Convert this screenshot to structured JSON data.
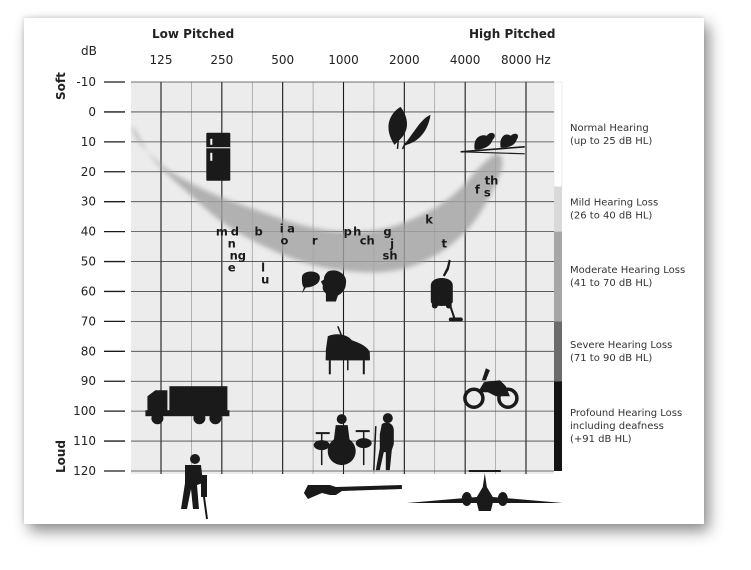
{
  "chart_data": {
    "type": "scatter",
    "title": "",
    "header_left": "Low Pitched",
    "header_right": "High Pitched",
    "y_unit": "dB",
    "y_axis_soft": "Soft",
    "y_axis_loud": "Loud",
    "y_ticks": [
      -10,
      0,
      10,
      20,
      30,
      40,
      50,
      60,
      70,
      80,
      90,
      100,
      110,
      120
    ],
    "ylim": [
      -10,
      120
    ],
    "y_reversed": true,
    "x_scale": "log",
    "x_ticks": [
      125,
      250,
      500,
      1000,
      2000,
      4000,
      8000
    ],
    "x_tick_labels": [
      "125",
      "250",
      "500",
      "1000",
      "2000",
      "4000",
      "8000 Hz"
    ],
    "grid": true,
    "speech_banana_outline": [
      [
        91,
        5
      ],
      [
        115,
        16
      ],
      [
        170,
        27
      ],
      [
        280,
        39
      ],
      [
        560,
        49
      ],
      [
        1000,
        53
      ],
      [
        1800,
        53
      ],
      [
        3000,
        47
      ],
      [
        4500,
        36
      ],
      [
        6000,
        20
      ],
      [
        5800,
        14
      ],
      [
        4800,
        18
      ],
      [
        3600,
        27
      ],
      [
        2500,
        34
      ],
      [
        1600,
        39
      ],
      [
        1000,
        40
      ],
      [
        640,
        38
      ],
      [
        380,
        33
      ],
      [
        220,
        27
      ],
      [
        140,
        20
      ],
      [
        110,
        14
      ],
      [
        95,
        9
      ]
    ],
    "speech_sounds": [
      {
        "label": "m",
        "x": 250,
        "y": 40
      },
      {
        "label": "d",
        "x": 290,
        "y": 40
      },
      {
        "label": "b",
        "x": 380,
        "y": 40
      },
      {
        "label": "i",
        "x": 495,
        "y": 39
      },
      {
        "label": "a",
        "x": 550,
        "y": 39
      },
      {
        "label": "n",
        "x": 280,
        "y": 44
      },
      {
        "label": "ng",
        "x": 300,
        "y": 48
      },
      {
        "label": "e",
        "x": 280,
        "y": 52
      },
      {
        "label": "l",
        "x": 400,
        "y": 52
      },
      {
        "label": "u",
        "x": 410,
        "y": 56
      },
      {
        "label": "o",
        "x": 510,
        "y": 43
      },
      {
        "label": "r",
        "x": 720,
        "y": 43
      },
      {
        "label": "p",
        "x": 1050,
        "y": 40
      },
      {
        "label": "h",
        "x": 1170,
        "y": 40
      },
      {
        "label": "ch",
        "x": 1310,
        "y": 43
      },
      {
        "label": "g",
        "x": 1650,
        "y": 40
      },
      {
        "label": "j",
        "x": 1740,
        "y": 44
      },
      {
        "label": "sh",
        "x": 1700,
        "y": 48
      },
      {
        "label": "k",
        "x": 2650,
        "y": 36
      },
      {
        "label": "t",
        "x": 3150,
        "y": 44
      },
      {
        "label": "f",
        "x": 4600,
        "y": 26
      },
      {
        "label": "s",
        "x": 5150,
        "y": 27
      },
      {
        "label": "th",
        "x": 5400,
        "y": 23
      }
    ],
    "loudness_bands": [
      {
        "label_line1": "Normal Hearing",
        "label_line2": "(up to 25 dB HL)",
        "label_line3": "",
        "from": -10,
        "to": 25,
        "color": "#ffffff"
      },
      {
        "label_line1": "Mild Hearing Loss",
        "label_line2": "(26 to 40 dB HL)",
        "label_line3": "",
        "from": 25,
        "to": 40,
        "color": "#d9d9d9"
      },
      {
        "label_line1": "Moderate Hearing Loss",
        "label_line2": "(41 to 70 dB HL)",
        "label_line3": "",
        "from": 40,
        "to": 70,
        "color": "#a6a6a6"
      },
      {
        "label_line1": "Severe Hearing Loss",
        "label_line2": "(71 to 90 dB HL)",
        "label_line3": "",
        "from": 70,
        "to": 90,
        "color": "#6b6b6b"
      },
      {
        "label_line1": "Profound Hearing Loss",
        "label_line2": "including deafness",
        "label_line3": "(+91 dB HL)",
        "from": 90,
        "to": 120,
        "color": "#141414"
      }
    ],
    "sound_icons": [
      {
        "icon": "refrigerator-icon",
        "x": 240,
        "y": 15
      },
      {
        "icon": "leaves-icon",
        "x": 2050,
        "y": 5
      },
      {
        "icon": "birds-icon",
        "x": 5600,
        "y": 10
      },
      {
        "icon": "speaking-person-icon",
        "x": 800,
        "y": 58
      },
      {
        "icon": "vacuum-cleaner-icon",
        "x": 3100,
        "y": 60
      },
      {
        "icon": "piano-icon",
        "x": 1050,
        "y": 81
      },
      {
        "icon": "truck-icon",
        "x": 165,
        "y": 97
      },
      {
        "icon": "motorcycle-icon",
        "x": 5300,
        "y": 93
      },
      {
        "icon": "drummer-icon",
        "x": 980,
        "y": 110
      },
      {
        "icon": "singer-icon",
        "x": 1620,
        "y": 111
      },
      {
        "icon": "jackhammer-worker-icon",
        "x": 180,
        "y": 126
      },
      {
        "icon": "rifle-icon",
        "x": 1100,
        "y": 126
      },
      {
        "icon": "airplane-icon",
        "x": 5000,
        "y": 126
      }
    ]
  }
}
